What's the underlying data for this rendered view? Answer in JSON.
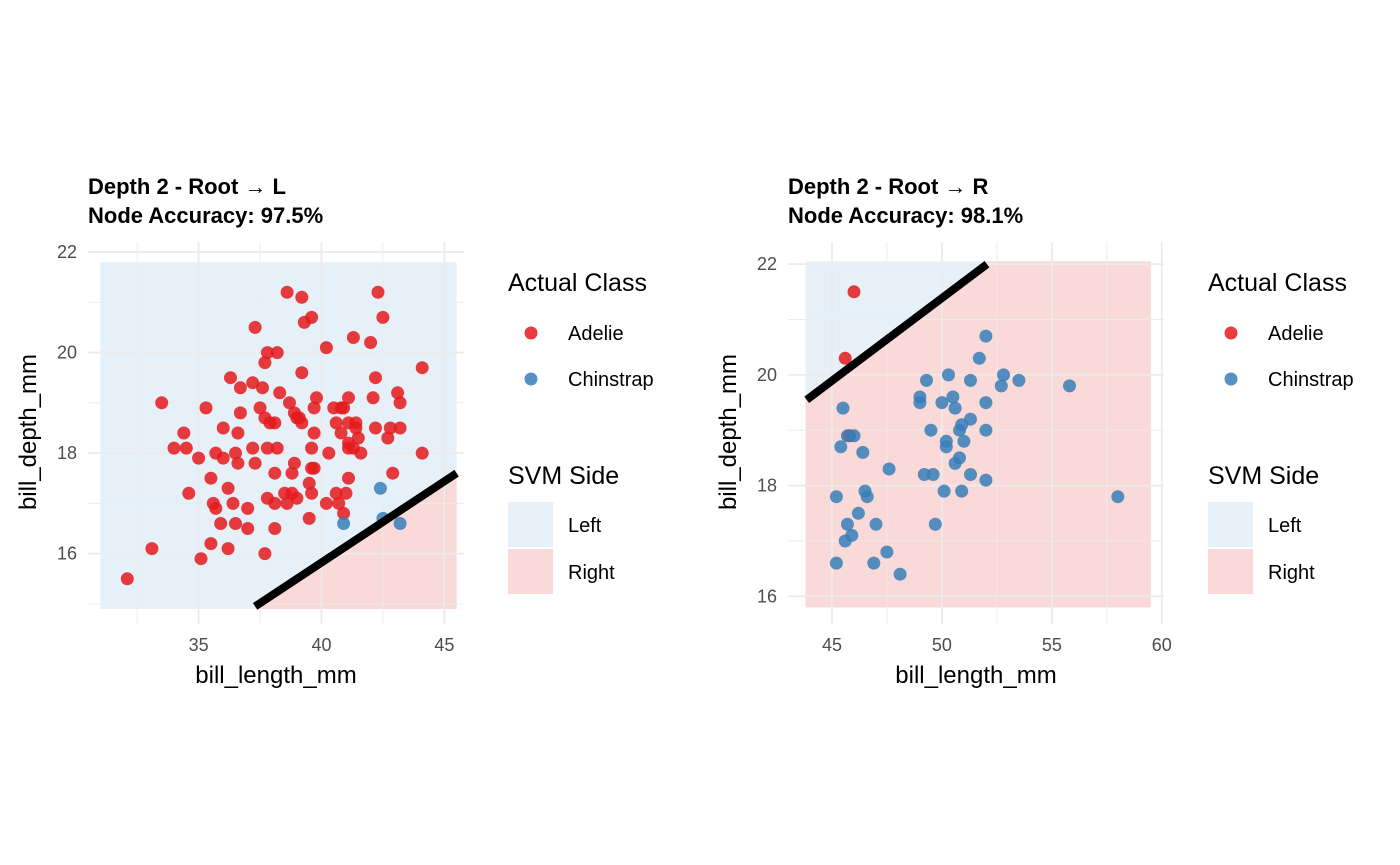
{
  "colors": {
    "adelie": "#E41A1C",
    "chinstrap": "#377EB8",
    "left_region": "#E6F0F8",
    "right_region": "#FAD9D9",
    "grid": "#EBEBEB",
    "boundary": "#000000"
  },
  "chart_data": [
    {
      "type": "scatter",
      "title": "Depth 2 - Root → L",
      "subtitle": "Node Accuracy: 97.5%",
      "xlabel": "bill_length_mm",
      "ylabel": "bill_depth_mm",
      "xlim": [
        30.5,
        45.8
      ],
      "ylim": [
        14.6,
        22.2
      ],
      "xticks": [
        35,
        40,
        45
      ],
      "yticks": [
        16,
        18,
        20,
        22
      ],
      "region_x": [
        31.0,
        45.5
      ],
      "region_y": [
        14.9,
        21.8
      ],
      "boundary": [
        [
          37.3,
          14.95
        ],
        [
          45.5,
          17.6
        ]
      ],
      "series": [
        {
          "name": "Adelie",
          "points": [
            [
              32.1,
              15.5
            ],
            [
              33.1,
              16.1
            ],
            [
              33.5,
              19.0
            ],
            [
              34.0,
              18.1
            ],
            [
              34.4,
              18.4
            ],
            [
              34.5,
              18.1
            ],
            [
              34.6,
              17.2
            ],
            [
              35.0,
              17.9
            ],
            [
              35.1,
              15.9
            ],
            [
              35.3,
              18.9
            ],
            [
              35.5,
              17.5
            ],
            [
              35.5,
              16.2
            ],
            [
              35.6,
              17.0
            ],
            [
              35.7,
              18.0
            ],
            [
              35.7,
              16.9
            ],
            [
              35.9,
              16.6
            ],
            [
              36.0,
              18.5
            ],
            [
              36.0,
              17.9
            ],
            [
              36.2,
              17.3
            ],
            [
              36.2,
              16.1
            ],
            [
              36.3,
              19.5
            ],
            [
              36.4,
              17.0
            ],
            [
              36.5,
              18.0
            ],
            [
              36.5,
              16.6
            ],
            [
              36.6,
              17.8
            ],
            [
              36.6,
              18.4
            ],
            [
              36.7,
              19.3
            ],
            [
              36.7,
              18.8
            ],
            [
              37.0,
              16.9
            ],
            [
              37.0,
              16.5
            ],
            [
              37.2,
              18.1
            ],
            [
              37.2,
              19.4
            ],
            [
              37.3,
              17.8
            ],
            [
              37.3,
              20.5
            ],
            [
              37.5,
              18.9
            ],
            [
              37.6,
              19.3
            ],
            [
              37.7,
              16.0
            ],
            [
              37.7,
              18.7
            ],
            [
              37.7,
              19.8
            ],
            [
              37.8,
              17.1
            ],
            [
              37.8,
              18.1
            ],
            [
              37.8,
              20.0
            ],
            [
              37.9,
              18.6
            ],
            [
              38.1,
              18.6
            ],
            [
              38.1,
              17.6
            ],
            [
              38.1,
              17.0
            ],
            [
              38.1,
              16.5
            ],
            [
              38.2,
              20.0
            ],
            [
              38.2,
              18.1
            ],
            [
              38.3,
              19.2
            ],
            [
              38.5,
              17.2
            ],
            [
              38.6,
              17.0
            ],
            [
              38.6,
              21.2
            ],
            [
              38.7,
              19.0
            ],
            [
              38.8,
              17.6
            ],
            [
              38.8,
              17.2
            ],
            [
              38.9,
              18.8
            ],
            [
              38.9,
              17.8
            ],
            [
              39.0,
              17.1
            ],
            [
              39.0,
              18.7
            ],
            [
              39.1,
              18.7
            ],
            [
              39.2,
              19.6
            ],
            [
              39.2,
              21.1
            ],
            [
              39.2,
              18.6
            ],
            [
              39.3,
              20.6
            ],
            [
              39.5,
              17.4
            ],
            [
              39.5,
              16.7
            ],
            [
              39.6,
              17.7
            ],
            [
              39.6,
              18.1
            ],
            [
              39.6,
              20.7
            ],
            [
              39.6,
              17.2
            ],
            [
              39.7,
              18.9
            ],
            [
              39.7,
              18.4
            ],
            [
              39.7,
              17.7
            ],
            [
              39.8,
              19.1
            ],
            [
              40.2,
              20.1
            ],
            [
              40.2,
              17.0
            ],
            [
              40.3,
              18.0
            ],
            [
              40.5,
              18.9
            ],
            [
              40.6,
              18.6
            ],
            [
              40.6,
              17.2
            ],
            [
              40.7,
              17.0
            ],
            [
              40.8,
              18.4
            ],
            [
              40.8,
              18.9
            ],
            [
              40.9,
              16.8
            ],
            [
              40.9,
              18.9
            ],
            [
              41.0,
              17.2
            ],
            [
              41.1,
              18.2
            ],
            [
              41.1,
              19.1
            ],
            [
              41.1,
              18.6
            ],
            [
              41.1,
              18.1
            ],
            [
              41.1,
              17.5
            ],
            [
              41.3,
              18.1
            ],
            [
              41.3,
              20.3
            ],
            [
              41.4,
              18.6
            ],
            [
              41.4,
              18.5
            ],
            [
              41.5,
              18.3
            ],
            [
              41.6,
              18.0
            ],
            [
              42.0,
              20.2
            ],
            [
              42.1,
              19.1
            ],
            [
              42.2,
              18.5
            ],
            [
              42.2,
              19.5
            ],
            [
              42.3,
              21.2
            ],
            [
              42.5,
              20.7
            ],
            [
              42.7,
              18.3
            ],
            [
              42.8,
              18.5
            ],
            [
              42.9,
              17.6
            ],
            [
              43.1,
              19.2
            ],
            [
              43.2,
              19.0
            ],
            [
              43.2,
              18.5
            ],
            [
              44.1,
              19.7
            ],
            [
              44.1,
              18.0
            ]
          ]
        },
        {
          "name": "Chinstrap",
          "points": [
            [
              40.9,
              16.6
            ],
            [
              42.4,
              17.3
            ],
            [
              42.5,
              16.7
            ],
            [
              43.2,
              16.6
            ]
          ]
        }
      ]
    },
    {
      "type": "scatter",
      "title": "Depth 2 - Root → R",
      "subtitle": "Node Accuracy: 98.1%",
      "xlabel": "bill_length_mm",
      "ylabel": "bill_depth_mm",
      "xlim": [
        43.0,
        60.1
      ],
      "ylim": [
        15.5,
        22.4
      ],
      "xticks": [
        45,
        50,
        55,
        60
      ],
      "yticks": [
        16,
        18,
        20,
        22
      ],
      "region_x": [
        43.8,
        59.5
      ],
      "region_y": [
        15.8,
        22.05
      ],
      "boundary": [
        [
          43.85,
          19.55
        ],
        [
          52.05,
          22.0
        ]
      ],
      "series": [
        {
          "name": "Adelie",
          "points": [
            [
              45.6,
              20.3
            ],
            [
              45.8,
              18.9
            ],
            [
              46.0,
              21.5
            ]
          ]
        },
        {
          "name": "Chinstrap",
          "points": [
            [
              45.2,
              17.8
            ],
            [
              45.2,
              16.6
            ],
            [
              45.4,
              18.7
            ],
            [
              45.5,
              19.4
            ],
            [
              45.6,
              17.0
            ],
            [
              45.7,
              17.3
            ],
            [
              45.7,
              18.9
            ],
            [
              45.9,
              17.1
            ],
            [
              46.0,
              18.9
            ],
            [
              46.2,
              17.5
            ],
            [
              46.4,
              18.6
            ],
            [
              46.5,
              17.9
            ],
            [
              46.6,
              17.8
            ],
            [
              46.9,
              16.6
            ],
            [
              47.0,
              17.3
            ],
            [
              47.5,
              16.8
            ],
            [
              47.6,
              18.3
            ],
            [
              48.1,
              16.4
            ],
            [
              49.0,
              19.5
            ],
            [
              49.0,
              19.6
            ],
            [
              49.2,
              18.2
            ],
            [
              49.3,
              19.9
            ],
            [
              49.5,
              19.0
            ],
            [
              49.6,
              18.2
            ],
            [
              49.7,
              17.3
            ],
            [
              50.0,
              19.5
            ],
            [
              50.1,
              17.9
            ],
            [
              50.2,
              18.7
            ],
            [
              50.2,
              18.8
            ],
            [
              50.3,
              20.0
            ],
            [
              50.5,
              19.6
            ],
            [
              50.6,
              19.4
            ],
            [
              50.6,
              18.4
            ],
            [
              50.8,
              18.5
            ],
            [
              50.8,
              19.0
            ],
            [
              50.9,
              17.9
            ],
            [
              50.9,
              19.1
            ],
            [
              51.0,
              18.8
            ],
            [
              51.3,
              18.2
            ],
            [
              51.3,
              19.2
            ],
            [
              51.3,
              19.9
            ],
            [
              51.7,
              20.3
            ],
            [
              52.0,
              18.1
            ],
            [
              52.0,
              19.0
            ],
            [
              52.0,
              20.7
            ],
            [
              52.0,
              19.5
            ],
            [
              52.7,
              19.8
            ],
            [
              52.8,
              20.0
            ],
            [
              53.5,
              19.9
            ],
            [
              55.8,
              19.8
            ],
            [
              58.0,
              17.8
            ]
          ]
        }
      ]
    }
  ],
  "legend": {
    "class_title": "Actual Class",
    "class_items": [
      "Adelie",
      "Chinstrap"
    ],
    "side_title": "SVM Side",
    "side_items": [
      "Left",
      "Right"
    ]
  }
}
